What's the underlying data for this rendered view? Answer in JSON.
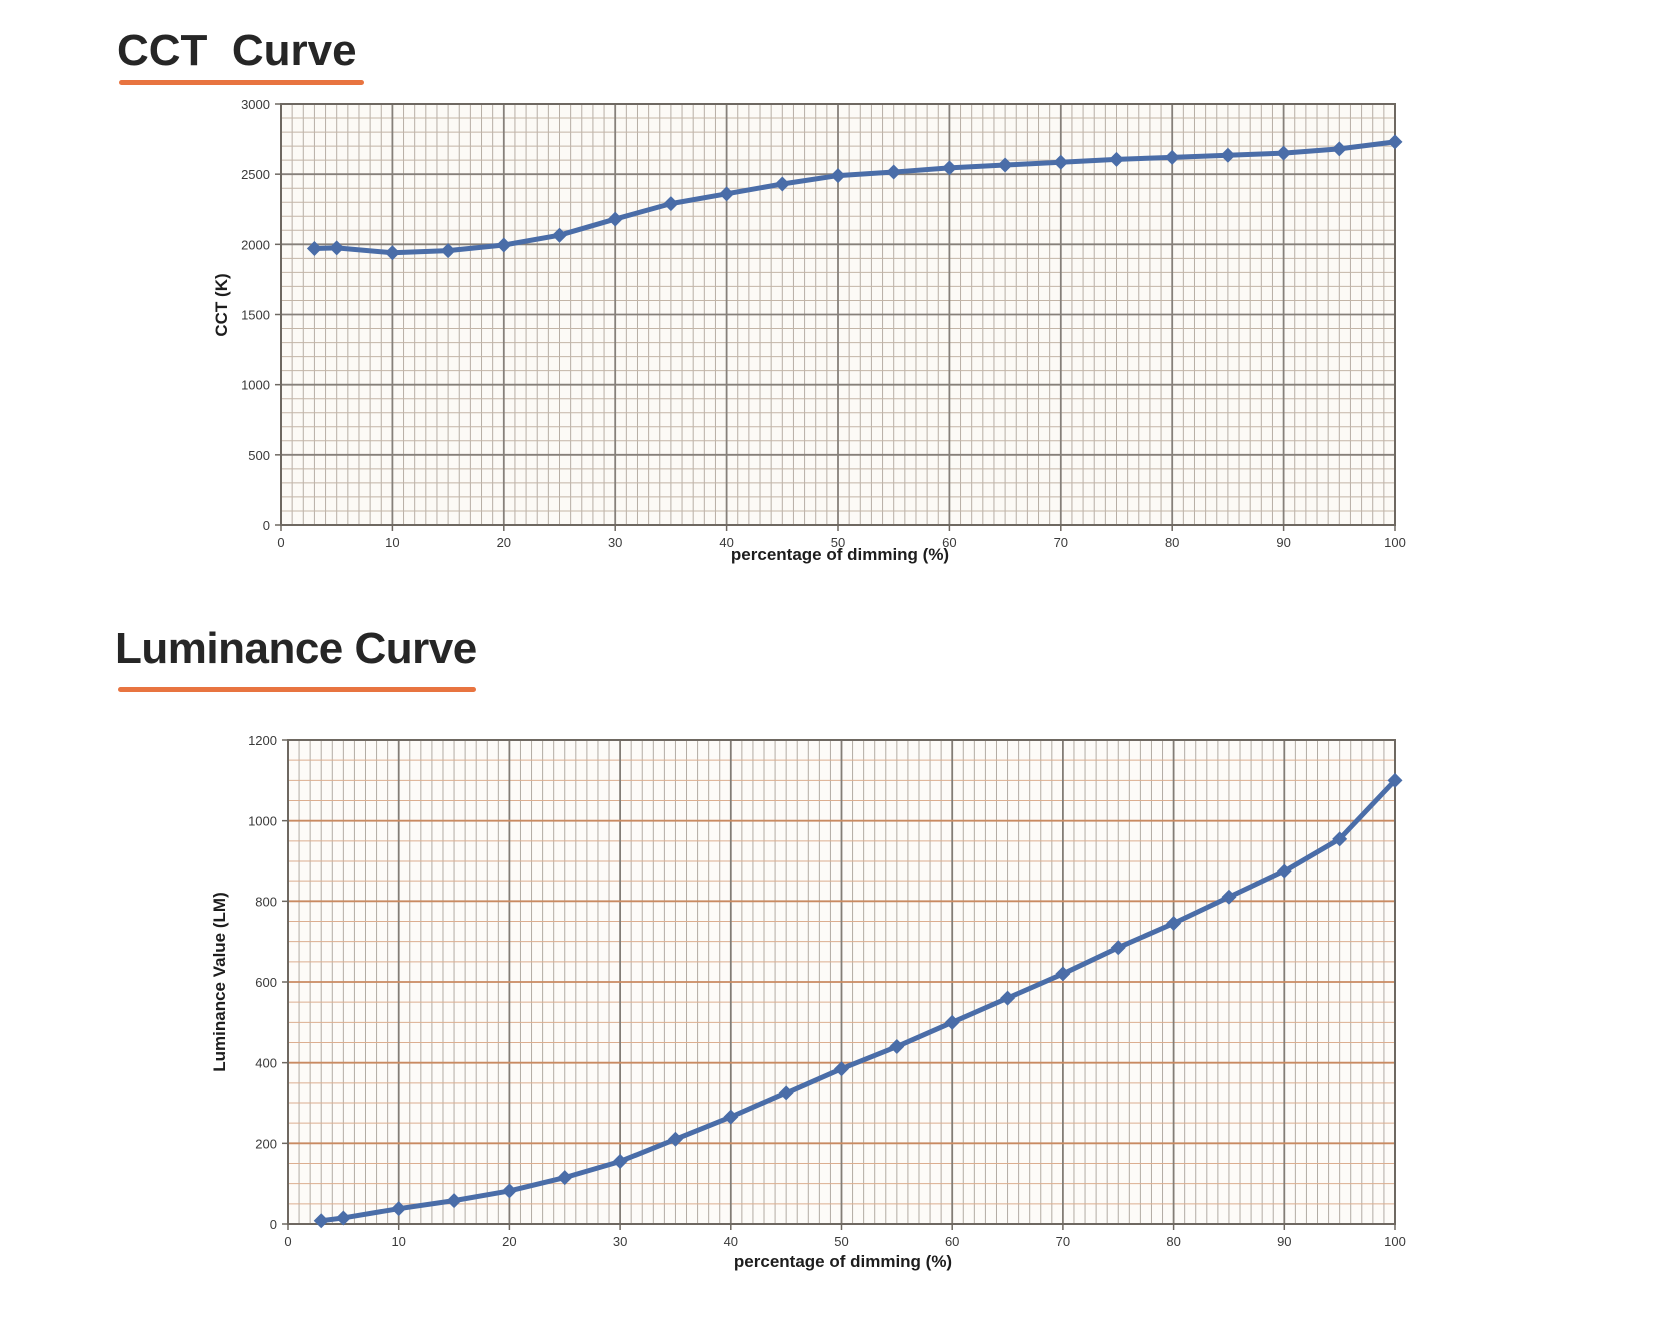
{
  "chart_data": [
    {
      "type": "line",
      "title": "CCT  Curve",
      "xlabel": "percentage of dimming (%)",
      "ylabel": "CCT (K)",
      "x": [
        3,
        5,
        10,
        15,
        20,
        25,
        30,
        35,
        40,
        45,
        50,
        55,
        60,
        65,
        70,
        75,
        80,
        85,
        90,
        95,
        100
      ],
      "y": [
        1970,
        1975,
        1940,
        1955,
        1995,
        2065,
        2180,
        2290,
        2360,
        2430,
        2490,
        2515,
        2545,
        2565,
        2585,
        2605,
        2620,
        2635,
        2650,
        2680,
        2730
      ],
      "xlim": [
        0,
        100
      ],
      "ylim": [
        0,
        3000
      ],
      "x_ticks": [
        0,
        10,
        20,
        30,
        40,
        50,
        60,
        70,
        80,
        90,
        100
      ],
      "y_ticks": [
        0,
        500,
        1000,
        1500,
        2000,
        2500,
        3000
      ],
      "x_minor_step": 1,
      "y_minor_step": 100,
      "x_major_step": 10,
      "y_major_step": 500,
      "grid": "on",
      "legend": "none",
      "marker": "diamond",
      "line_color": "#4a6da8",
      "underline_color": "#e87440",
      "plot_bg": "#fcfaf6",
      "grid_minor_v": "#b7aea5",
      "grid_minor_h": "#c3b5a7",
      "grid_major_v": "#86807a",
      "grid_major_h": "#86807a",
      "border_color": "#6e6861",
      "tick_color": "#6e6861"
    },
    {
      "type": "line",
      "title": "Luminance Curve",
      "xlabel": "percentage of dimming (%)",
      "ylabel": "Luminance Value (LM)",
      "x": [
        3,
        5,
        10,
        15,
        20,
        25,
        30,
        35,
        40,
        45,
        50,
        55,
        60,
        65,
        70,
        75,
        80,
        85,
        90,
        95,
        100
      ],
      "y": [
        8,
        15,
        38,
        58,
        82,
        115,
        155,
        210,
        265,
        325,
        385,
        440,
        500,
        560,
        620,
        685,
        745,
        810,
        875,
        955,
        1100
      ],
      "xlim": [
        0,
        100
      ],
      "ylim": [
        0,
        1200
      ],
      "x_ticks": [
        0,
        10,
        20,
        30,
        40,
        50,
        60,
        70,
        80,
        90,
        100
      ],
      "y_ticks": [
        0,
        200,
        400,
        600,
        800,
        1000,
        1200
      ],
      "x_minor_step": 1,
      "y_minor_step": 50,
      "x_major_step": 10,
      "y_major_step": 200,
      "grid": "on",
      "legend": "none",
      "marker": "diamond",
      "line_color": "#4a6da8",
      "underline_color": "#e87440",
      "plot_bg": "#fdfbf8",
      "grid_minor_v": "#b2aba3",
      "grid_minor_h": "#dcae90",
      "grid_major_v": "#837d76",
      "grid_major_h": "#c98a61",
      "border_color": "#6e6861",
      "tick_color": "#6e6861"
    }
  ]
}
